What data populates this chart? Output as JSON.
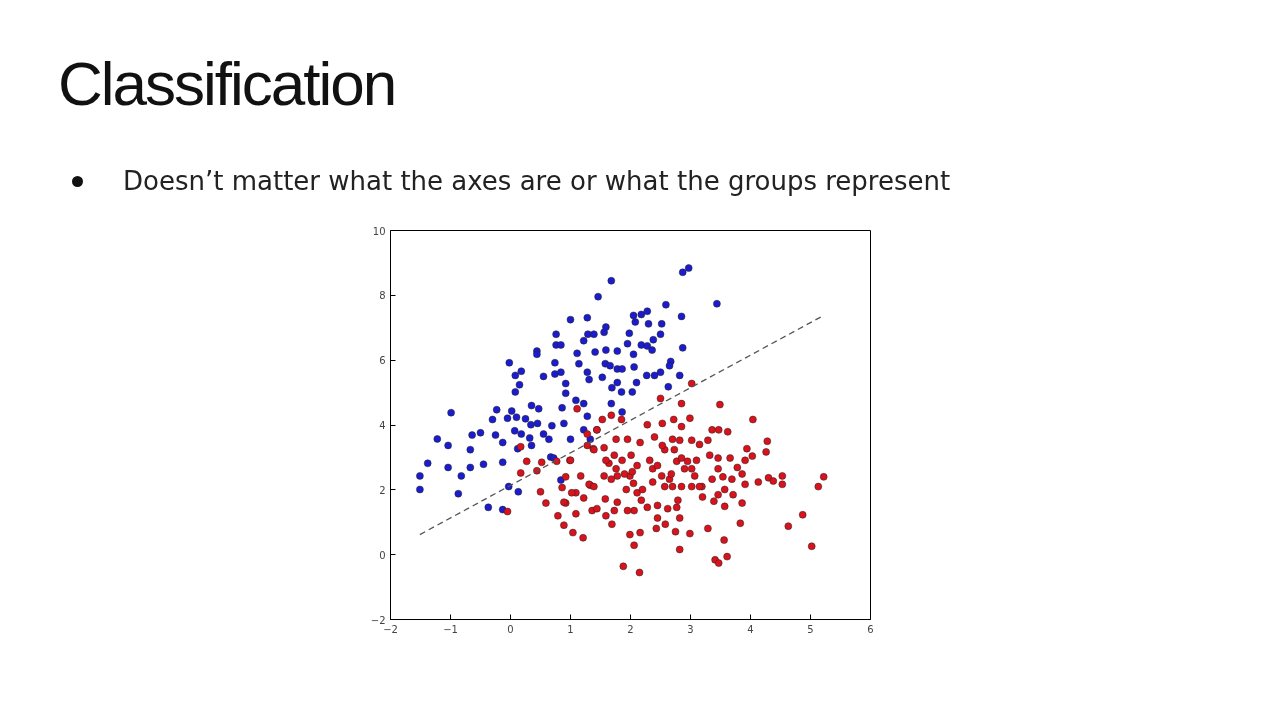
{
  "chart_data": {
    "type": "scatter",
    "title": "Classification",
    "subtitle": "Doesn’t matter what the axes are or what the groups represent",
    "xlim": [
      -2,
      6
    ],
    "ylim": [
      -2,
      10
    ],
    "xticks": [
      -2,
      -1,
      0,
      1,
      2,
      3,
      4,
      5,
      6
    ],
    "yticks": [
      -2,
      0,
      2,
      4,
      6,
      8,
      10
    ],
    "series": [
      {
        "marker": "circle",
        "color": "#1c1ccf",
        "x": [
          -1.51,
          -1.51,
          -1.38,
          -1.22,
          -1.04,
          -0.99,
          -1.04,
          -0.87,
          -0.82,
          -0.67,
          -0.67,
          -0.64,
          -0.5,
          -0.45,
          -0.3,
          -0.25,
          -0.23,
          -0.13,
          -0.13,
          -0.05,
          0.02,
          0.07,
          0.1,
          0.12,
          0.18,
          0.25,
          0.32,
          0.34,
          0.35,
          0.35,
          0.47,
          0.45,
          0.55,
          0.64,
          0.69,
          0.67,
          0.72,
          0.86,
          0.92,
          0.89,
          1.0,
          1.09,
          1.22,
          1.28,
          1.22,
          1.33,
          1.44,
          1.68,
          1.86,
          0.84,
          -0.37,
          -0.13,
          0.13,
          -0.03,
          -0.02,
          0.08,
          0.15,
          0.18,
          0.08,
          0.44,
          0.44,
          0.74,
          0.76,
          0.76,
          0.84,
          0.55,
          0.74,
          0.84,
          0.92,
          1.0,
          1.11,
          1.14,
          1.22,
          1.28,
          1.29,
          1.41,
          1.39,
          1.46,
          1.28,
          1.31,
          1.53,
          1.56,
          1.59,
          1.68,
          1.59,
          1.58,
          1.66,
          1.78,
          1.78,
          1.86,
          1.78,
          1.69,
          1.85,
          1.95,
          1.98,
          2.05,
          2.08,
          2.05,
          2.06,
          2.1,
          2.03,
          2.18,
          2.28,
          2.3,
          2.18,
          2.28,
          2.36,
          2.38,
          2.5,
          2.52,
          2.59,
          2.27,
          2.4,
          2.5,
          2.67,
          2.65,
          2.63,
          2.82,
          2.87,
          2.97,
          2.85,
          2.87,
          3.44
        ],
        "values": [
          2.43,
          2.01,
          2.82,
          3.57,
          3.37,
          4.38,
          2.69,
          1.88,
          2.43,
          2.69,
          3.24,
          3.69,
          3.76,
          2.79,
          4.17,
          3.69,
          4.47,
          3.46,
          2.85,
          4.21,
          4.43,
          3.82,
          4.24,
          3.27,
          3.72,
          4.19,
          3.6,
          4.01,
          3.37,
          4.6,
          4.5,
          4.05,
          3.72,
          3.56,
          3.98,
          3.01,
          2.98,
          4.53,
          4.98,
          4.05,
          3.56,
          4.76,
          4.66,
          4.27,
          3.85,
          3.56,
          3.85,
          4.66,
          4.4,
          2.3,
          1.46,
          1.39,
          1.94,
          2.1,
          5.92,
          5.53,
          5.24,
          5.66,
          5.02,
          6.28,
          6.18,
          5.92,
          6.47,
          6.8,
          6.47,
          5.5,
          5.57,
          5.63,
          5.28,
          7.25,
          6.21,
          5.89,
          6.6,
          7.31,
          6.8,
          6.25,
          6.8,
          7.96,
          5.63,
          5.4,
          5.47,
          6.86,
          7.02,
          8.45,
          6.31,
          5.89,
          5.83,
          6.28,
          5.73,
          5.73,
          5.31,
          5.15,
          5.02,
          6.51,
          6.83,
          7.38,
          7.18,
          6.18,
          5.79,
          5.31,
          5.02,
          7.41,
          7.51,
          7.12,
          6.47,
          6.44,
          6.31,
          6.63,
          6.8,
          7.12,
          7.71,
          5.53,
          5.53,
          5.63,
          5.96,
          5.83,
          5.18,
          5.53,
          8.71,
          8.84,
          7.35,
          6.38,
          7.74
        ]
      },
      {
        "marker": "circle",
        "color": "#d9121b",
        "x": [
          -0.05,
          0.17,
          0.17,
          0.27,
          0.44,
          0.52,
          0.77,
          0.92,
          0.99,
          0.5,
          0.59,
          0.79,
          0.89,
          0.92,
          1.04,
          1.09,
          1.21,
          1.09,
          1.17,
          1.11,
          1.22,
          1.28,
          1.36,
          1.33,
          1.53,
          1.38,
          1.56,
          1.88,
          2.15,
          3.02,
          2.5,
          2.85,
          3.49,
          4.04,
          2.99,
          2.72,
          2.28,
          2.53,
          2.85,
          3.36,
          3.47,
          3.62,
          4.28,
          4.26,
          3.94,
          4.03,
          3.91,
          4.53,
          4.53,
          5.22,
          5.13,
          4.87,
          4.63,
          5.02,
          4.13,
          4.3,
          4.38,
          3.86,
          3.91,
          3.86,
          3.83,
          3.71,
          3.57,
          3.56,
          3.61,
          3.41,
          3.47,
          3.39,
          3.29,
          3.36,
          3.46,
          3.54,
          3.32,
          3.2,
          3.19,
          2.95,
          2.9,
          2.99,
          2.82,
          2.75,
          2.58,
          2.43,
          2.16,
          2.06,
          1.99,
          2.45,
          2.82,
          2.62,
          2.77,
          2.79,
          2.45,
          2.28,
          2.18,
          2.11,
          2.2,
          2.06,
          1.95,
          1.73,
          1.59,
          1.69,
          1.44,
          1.58,
          1.78,
          1.93,
          2.05,
          1.99,
          1.78,
          1.68,
          1.56,
          1.64,
          1.59,
          1.76,
          1.9,
          2.03,
          2.11,
          2.01,
          1.86,
          1.73,
          2.16,
          1.95,
          1.76,
          1.85,
          1.68,
          1.44,
          1.39,
          1.28,
          1.0,
          1.31,
          1.39,
          2.32,
          2.37,
          2.45,
          2.52,
          2.37,
          2.57,
          2.53,
          2.7,
          2.4,
          2.77,
          2.85,
          3.02,
          3.1,
          3.07,
          3.15,
          3.02,
          2.85,
          2.7,
          2.57,
          2.65,
          2.68,
          2.73,
          2.82,
          3.02,
          3.15,
          3.29,
          3.46,
          3.66,
          3.78,
          3.69,
          3.57,
          3.46,
          0.89,
          1.02,
          0.86
        ],
        "values": [
          1.33,
          3.33,
          2.52,
          2.88,
          2.59,
          2.85,
          2.88,
          2.4,
          2.91,
          1.94,
          1.59,
          1.2,
          0.91,
          1.59,
          0.68,
          1.26,
          0.52,
          1.91,
          2.43,
          4.5,
          1.75,
          3.37,
          1.36,
          2.14,
          4.17,
          3.27,
          3.3,
          -0.36,
          -0.55,
          5.28,
          4.82,
          4.66,
          4.63,
          4.17,
          4.21,
          4.17,
          4.01,
          4.05,
          3.95,
          3.85,
          3.85,
          3.79,
          3.5,
          3.17,
          3.27,
          3.04,
          2.91,
          2.43,
          2.17,
          2.4,
          2.1,
          1.23,
          0.88,
          0.26,
          2.24,
          2.37,
          2.27,
          2.49,
          2.17,
          1.59,
          0.97,
          1.85,
          1.49,
          0.45,
          -0.06,
          -0.16,
          -0.26,
          1.65,
          0.81,
          2.33,
          2.65,
          2.4,
          3.07,
          1.78,
          2.1,
          2.88,
          2.65,
          0.65,
          0.16,
          0.71,
          0.94,
          0.81,
          0.68,
          0.29,
          0.62,
          1.13,
          1.13,
          1.42,
          1.46,
          1.68,
          1.52,
          1.46,
          1.68,
          1.91,
          2.01,
          1.36,
          1.36,
          1.36,
          1.2,
          0.94,
          1.42,
          1.72,
          1.62,
          2.01,
          2.2,
          2.43,
          2.43,
          2.33,
          2.43,
          2.82,
          2.91,
          2.65,
          2.49,
          2.56,
          2.75,
          3.07,
          2.91,
          3.07,
          3.46,
          3.56,
          3.56,
          4.17,
          4.3,
          3.85,
          3.24,
          3.72,
          2.91,
          2.17,
          2.1,
          2.91,
          2.65,
          2.75,
          2.43,
          2.24,
          3.24,
          3.37,
          3.56,
          3.63,
          2.88,
          2.98,
          2.65,
          2.91,
          2.43,
          2.1,
          2.1,
          2.1,
          2.1,
          2.1,
          2.33,
          2.49,
          3.24,
          3.53,
          3.53,
          3.4,
          3.53,
          2.98,
          2.98,
          2.69,
          2.33,
          2.01,
          1.85,
          1.62,
          1.91,
          2.07
        ]
      },
      {
        "type": "line",
        "color": "#555555",
        "line_style": "dashed",
        "x": [
          -1.51,
          5.17
        ],
        "values": [
          0.62,
          7.33
        ]
      }
    ]
  }
}
